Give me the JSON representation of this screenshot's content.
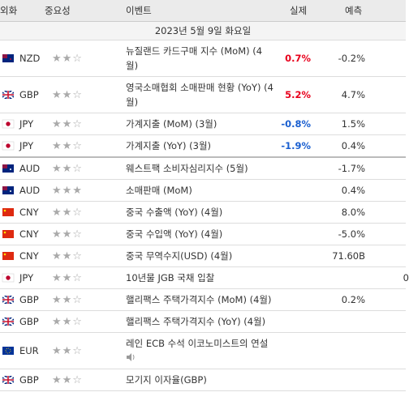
{
  "header": {
    "columns": [
      "외화",
      "중요성",
      "이벤트",
      "실제",
      "예측"
    ]
  },
  "date": "2023년 5월 9일 화요일",
  "rows": [
    {
      "currency": "NZD",
      "importance": 2,
      "event": "뉴질랜드 카드구매 지수 (MoM) (4월)",
      "actual": "0.7%",
      "actual_color": "#e8001c",
      "forecast": "-0.2%"
    },
    {
      "currency": "GBP",
      "importance": 2,
      "event": "영국소매협회 소매판매 현황 (YoY) (4월)",
      "actual": "5.2%",
      "actual_color": "#e8001c",
      "forecast": "4.7%"
    },
    {
      "currency": "JPY",
      "importance": 2,
      "event": "가계지출 (MoM) (3월)",
      "actual": "-0.8%",
      "actual_color": "#1a5fd0",
      "forecast": "1.5%"
    },
    {
      "currency": "JPY",
      "importance": 2,
      "event": "가계지출 (YoY) (3월)",
      "actual": "-1.9%",
      "actual_color": "#1a5fd0",
      "forecast": "0.4%"
    },
    {
      "currency": "AUD",
      "importance": 2,
      "event": "웨스트팩 소비자심리지수 (5월)",
      "forecast": "-1.7%"
    },
    {
      "currency": "AUD",
      "importance": 3,
      "event": "소매판매 (MoM)",
      "forecast": "0.4%"
    },
    {
      "currency": "CNY",
      "importance": 2,
      "event": "중국 수출액 (YoY) (4월)",
      "forecast": "8.0%"
    },
    {
      "currency": "CNY",
      "importance": 2,
      "event": "중국 수입액 (YoY) (4월)",
      "forecast": "-5.0%"
    },
    {
      "currency": "CNY",
      "importance": 2,
      "event": "중국 무역수지(USD) (4월)",
      "forecast": "71.60B"
    },
    {
      "currency": "JPY",
      "importance": 2,
      "event": "10년물 JGB 국채 입찰",
      "previous": "0"
    },
    {
      "currency": "GBP",
      "importance": 2,
      "event": "핼리팩스 주택가격지수 (MoM) (4월)",
      "forecast": "0.2%"
    },
    {
      "currency": "GBP",
      "importance": 2,
      "event": "핼리팩스 주택가격지수 (YoY) (4월)"
    },
    {
      "currency": "EUR",
      "importance": 2,
      "event": "레인 ECB 수석 이코노미스트의 연설",
      "speech": true
    },
    {
      "currency": "GBP",
      "importance": 2,
      "event": "모기지 이자율(GBP)"
    }
  ]
}
